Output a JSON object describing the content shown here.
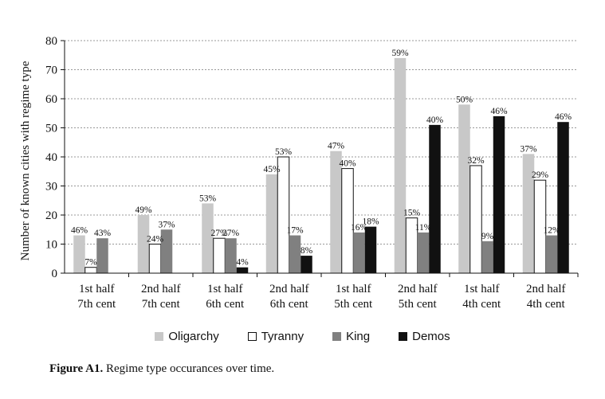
{
  "chart_data": {
    "type": "bar",
    "ylabel": "Number of known cities with regime type",
    "ylim": [
      0,
      80
    ],
    "yticks": [
      0,
      10,
      20,
      30,
      40,
      50,
      60,
      70,
      80
    ],
    "grid": "horizontal dotted",
    "categories": [
      [
        "1st half",
        "7th cent"
      ],
      [
        "2nd half",
        "7th cent"
      ],
      [
        "1st half",
        "6th cent"
      ],
      [
        "2nd half",
        "6th cent"
      ],
      [
        "1st half",
        "5th cent"
      ],
      [
        "2nd half",
        "5th cent"
      ],
      [
        "1st half",
        "4th cent"
      ],
      [
        "2nd half",
        "4th cent"
      ]
    ],
    "series": [
      {
        "name": "Oligarchy",
        "color": "#c8c8c8",
        "values": [
          13,
          20,
          24,
          34,
          42,
          74,
          58,
          41
        ],
        "labels": [
          "46%",
          "49%",
          "53%",
          "45%",
          "47%",
          "59%",
          "50%",
          "37%"
        ]
      },
      {
        "name": "Tyranny",
        "color": "#ffffff",
        "values": [
          2,
          10,
          12,
          40,
          36,
          19,
          37,
          32
        ],
        "labels": [
          "7%",
          "24%",
          "27%",
          "53%",
          "40%",
          "15%",
          "32%",
          "29%"
        ]
      },
      {
        "name": "King",
        "color": "#808080",
        "values": [
          12,
          15,
          12,
          13,
          14,
          14,
          11,
          13
        ],
        "labels": [
          "43%",
          "37%",
          "27%",
          "17%",
          "16%",
          "11%",
          "9%",
          "12%"
        ]
      },
      {
        "name": "Demos",
        "color": "#111111",
        "values": [
          0,
          0,
          2,
          6,
          16,
          51,
          54,
          52
        ],
        "labels": [
          "",
          "",
          "4%",
          "8%",
          "18%",
          "40%",
          "46%",
          "46%"
        ]
      }
    ],
    "legend_position": "bottom"
  },
  "caption": {
    "figure_label": "Figure A1.",
    "text": " Regime type occurances over time."
  }
}
